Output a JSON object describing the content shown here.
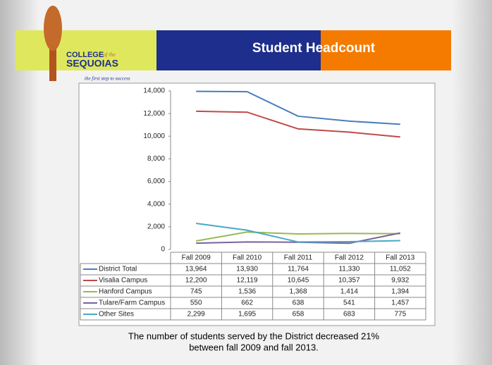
{
  "header": {
    "logo_college": "COLLEGE",
    "logo_of_the": "of the",
    "logo_sequoias": "SEQUOIAS",
    "tagline": "the first step to success"
  },
  "chart_data": {
    "type": "line",
    "title": "Student Headcount",
    "categories": [
      "Fall 2009",
      "Fall 2010",
      "Fall 2011",
      "Fall 2012",
      "Fall 2013"
    ],
    "series": [
      {
        "name": "District Total",
        "color": "#4a7ebb",
        "values": [
          13964,
          13930,
          11764,
          11330,
          11052
        ],
        "value_labels": [
          "13,964",
          "13,930",
          "11,764",
          "11,330",
          "11,052"
        ]
      },
      {
        "name": "Visalia Campus",
        "color": "#be4b48",
        "values": [
          12200,
          12119,
          10645,
          10357,
          9932
        ],
        "value_labels": [
          "12,200",
          "12,119",
          "10,645",
          "10,357",
          "9,932"
        ]
      },
      {
        "name": "Hanford Campus",
        "color": "#98b954",
        "values": [
          745,
          1536,
          1368,
          1414,
          1394
        ],
        "value_labels": [
          "745",
          "1,536",
          "1,368",
          "1,414",
          "1,394"
        ]
      },
      {
        "name": "Tulare/Farm Campus",
        "color": "#7d60a0",
        "values": [
          550,
          662,
          638,
          541,
          1457
        ],
        "value_labels": [
          "550",
          "662",
          "638",
          "541",
          "1,457"
        ]
      },
      {
        "name": "Other Sites",
        "color": "#46aac5",
        "values": [
          2299,
          1695,
          658,
          683,
          775
        ],
        "value_labels": [
          "2,299",
          "1,695",
          "658",
          "683",
          "775"
        ]
      }
    ],
    "ylim": [
      0,
      14000
    ],
    "yticks": [
      0,
      {
        "value": 2000,
        "label": "2,000"
      },
      {
        "value": 4000,
        "label": "4,000"
      },
      {
        "value": 6000,
        "label": "6,000"
      },
      {
        "value": 8000,
        "label": "8,000"
      },
      {
        "value": 10000,
        "label": "10,000"
      },
      {
        "value": 12000,
        "label": "12,000"
      },
      {
        "value": 14000,
        "label": "14,000"
      }
    ],
    "grid": false,
    "annotations": [
      "The number of students served by the District decreased 21%",
      "between fall 2009 and fall 2013."
    ]
  }
}
